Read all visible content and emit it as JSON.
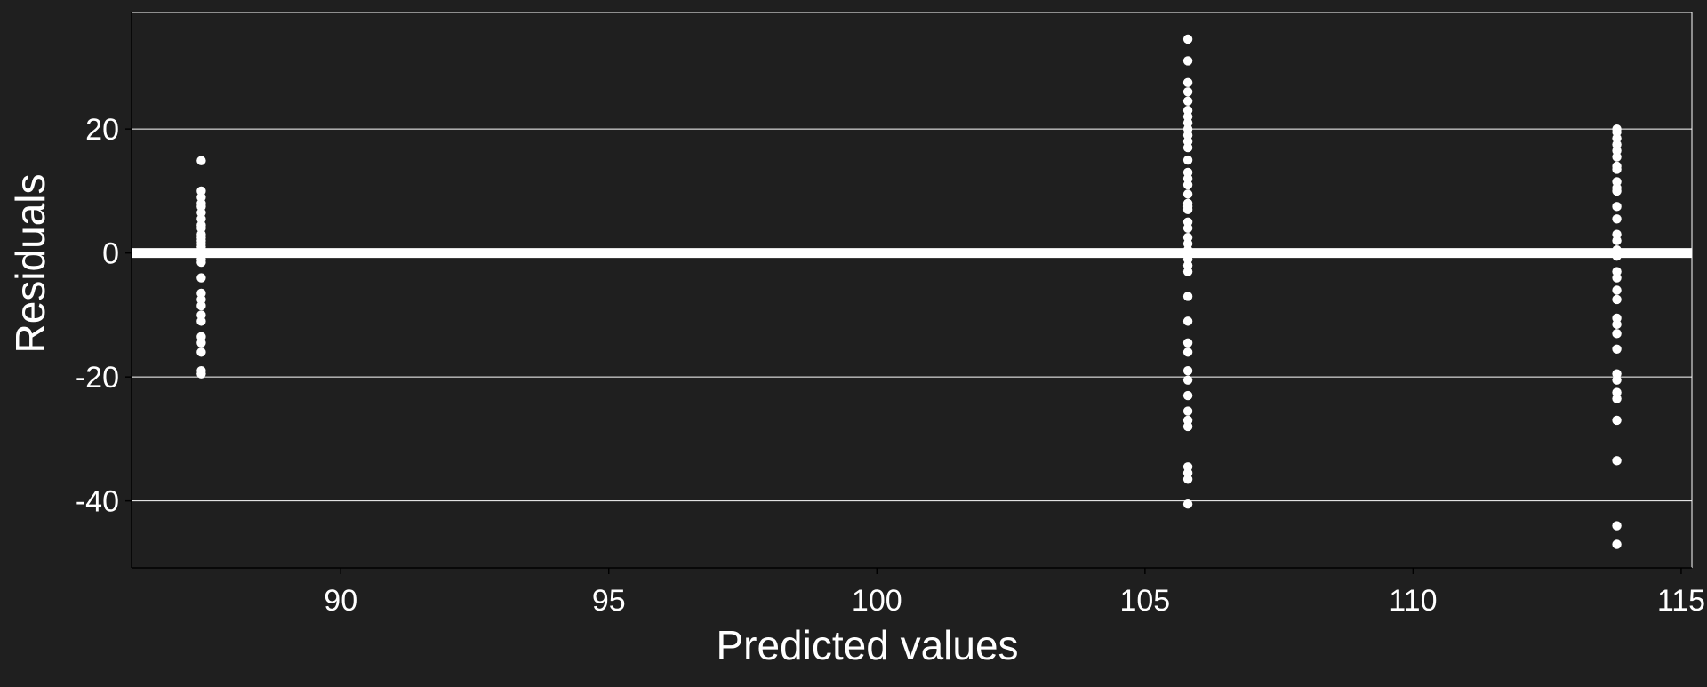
{
  "chart_data": {
    "type": "scatter",
    "title": "",
    "xlabel": "Predicted values",
    "ylabel": "Residuals",
    "xlim": [
      86.1,
      115.2
    ],
    "ylim": [
      -50.8,
      38.8
    ],
    "x_ticks": [
      90,
      95,
      100,
      105,
      110,
      115
    ],
    "x_tick_labels": [
      "90",
      "95",
      "100",
      "105",
      "110",
      "115"
    ],
    "y_ticks": [
      -40,
      -20,
      0,
      20
    ],
    "y_tick_labels": [
      "-40",
      "-20",
      "0",
      "20"
    ],
    "grid": {
      "horizontal": true,
      "vertical": false
    },
    "reference_line": {
      "y": 0
    },
    "colors": {
      "background": "#1f1f1f",
      "points": "#ffffff",
      "grid": "#ffffff",
      "axis": "#ffffff"
    },
    "series": [
      {
        "x": 87.4,
        "residuals": [
          14.9,
          10,
          9,
          8,
          7.5,
          6.5,
          5.5,
          4.5,
          4,
          3,
          2.5,
          2,
          1.5,
          1,
          0.5,
          0,
          -0.5,
          -1,
          -1.5,
          -4,
          -6.5,
          -7.5,
          -8.5,
          -10,
          -11,
          -13.5,
          -14.5,
          -16,
          -19,
          -19.5
        ]
      },
      {
        "x": 105.8,
        "residuals": [
          34.5,
          31,
          27.5,
          26,
          24.5,
          23,
          22,
          21,
          20,
          19,
          18,
          17,
          15,
          13,
          12,
          11,
          9.5,
          8,
          7.5,
          7,
          5,
          4,
          2.5,
          1.5,
          0.5,
          -0.5,
          -1,
          -2,
          -3,
          -7,
          -11,
          -14.5,
          -16,
          -19,
          -20.5,
          -23,
          -25.5,
          -27,
          -28,
          -34.5,
          -35.5,
          -36.5,
          -40.5
        ]
      },
      {
        "x": 113.8,
        "residuals": [
          20,
          19.5,
          18.5,
          17.5,
          16.5,
          15.5,
          14,
          13.5,
          11.5,
          10.5,
          10,
          7.5,
          5.5,
          3,
          2,
          0.5,
          -0.5,
          -3,
          -4,
          -6,
          -7.5,
          -10.5,
          -11.5,
          -13,
          -15.5,
          -19.5,
          -20.5,
          -22.5,
          -23.5,
          -27,
          -33.5,
          -44,
          -47
        ]
      }
    ]
  }
}
